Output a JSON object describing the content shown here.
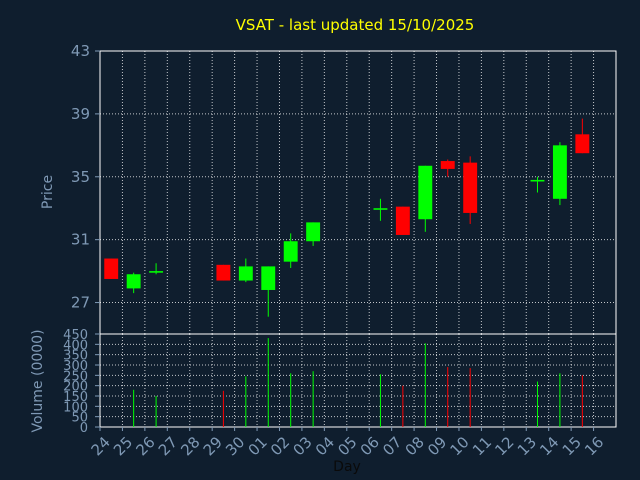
{
  "chart_data": {
    "type": "candlestick",
    "title": "VSAT - last updated 15/10/2025",
    "ylabel_price": "Price",
    "ylabel_volume": "Volume (0000)",
    "xlabel": "Day",
    "price_ylim": [
      25,
      43
    ],
    "price_ticks": [
      "43",
      "39",
      "35",
      "31",
      "27"
    ],
    "price_tick_values": [
      43,
      39,
      35,
      31,
      27
    ],
    "volume_ylim": [
      0,
      450
    ],
    "volume_ticks": [
      "450",
      "400",
      "350",
      "300",
      "250",
      "200",
      "150",
      "100",
      "50",
      "0"
    ],
    "volume_tick_values": [
      450,
      400,
      350,
      300,
      250,
      200,
      150,
      100,
      50,
      0
    ],
    "x_labels": [
      "24",
      "25",
      "26",
      "27",
      "28",
      "29",
      "30",
      "01",
      "02",
      "03",
      "04",
      "05",
      "06",
      "07",
      "08",
      "09",
      "10",
      "11",
      "12",
      "13",
      "14",
      "15",
      "16"
    ],
    "grid": true,
    "colors": {
      "up": "#00ff00",
      "down": "#ff0000",
      "grid": "#ffffff",
      "axis": "#7f99b5",
      "title": "#ffff00",
      "background": "#0f1e2e"
    },
    "candles": [
      {
        "x": 0,
        "open": 29.8,
        "close": 28.5,
        "high": 29.8,
        "low": 28.5,
        "volume": 0
      },
      {
        "x": 1,
        "open": 27.9,
        "close": 28.8,
        "high": 28.9,
        "low": 27.6,
        "volume": 180
      },
      {
        "x": 2,
        "open": 28.9,
        "close": 29.0,
        "high": 29.5,
        "low": 28.8,
        "volume": 150
      },
      {
        "x": 5,
        "open": 29.4,
        "close": 28.4,
        "high": 29.4,
        "low": 28.4,
        "volume": 175
      },
      {
        "x": 6,
        "open": 28.4,
        "close": 29.3,
        "high": 29.8,
        "low": 28.3,
        "volume": 245
      },
      {
        "x": 7,
        "open": 27.8,
        "close": 29.3,
        "high": 29.3,
        "low": 26.1,
        "volume": 430
      },
      {
        "x": 8,
        "open": 29.6,
        "close": 30.9,
        "high": 31.4,
        "low": 29.2,
        "volume": 260
      },
      {
        "x": 9,
        "open": 30.9,
        "close": 32.1,
        "high": 32.1,
        "low": 30.6,
        "volume": 270
      },
      {
        "x": 12,
        "open": 32.9,
        "close": 33.0,
        "high": 33.6,
        "low": 32.2,
        "volume": 255
      },
      {
        "x": 13,
        "open": 33.1,
        "close": 31.3,
        "high": 33.1,
        "low": 31.3,
        "volume": 200
      },
      {
        "x": 14,
        "open": 32.3,
        "close": 35.7,
        "high": 35.7,
        "low": 31.5,
        "volume": 405
      },
      {
        "x": 15,
        "open": 36.0,
        "close": 35.5,
        "high": 36.1,
        "low": 35.0,
        "volume": 290
      },
      {
        "x": 16,
        "open": 35.9,
        "close": 32.7,
        "high": 36.3,
        "low": 32.0,
        "volume": 285
      },
      {
        "x": 19,
        "open": 34.7,
        "close": 34.8,
        "high": 35.0,
        "low": 34.0,
        "volume": 220
      },
      {
        "x": 20,
        "open": 33.6,
        "close": 37.0,
        "high": 37.2,
        "low": 33.2,
        "volume": 260
      },
      {
        "x": 21,
        "open": 37.7,
        "close": 36.5,
        "high": 38.7,
        "low": 36.5,
        "volume": 250
      }
    ]
  }
}
